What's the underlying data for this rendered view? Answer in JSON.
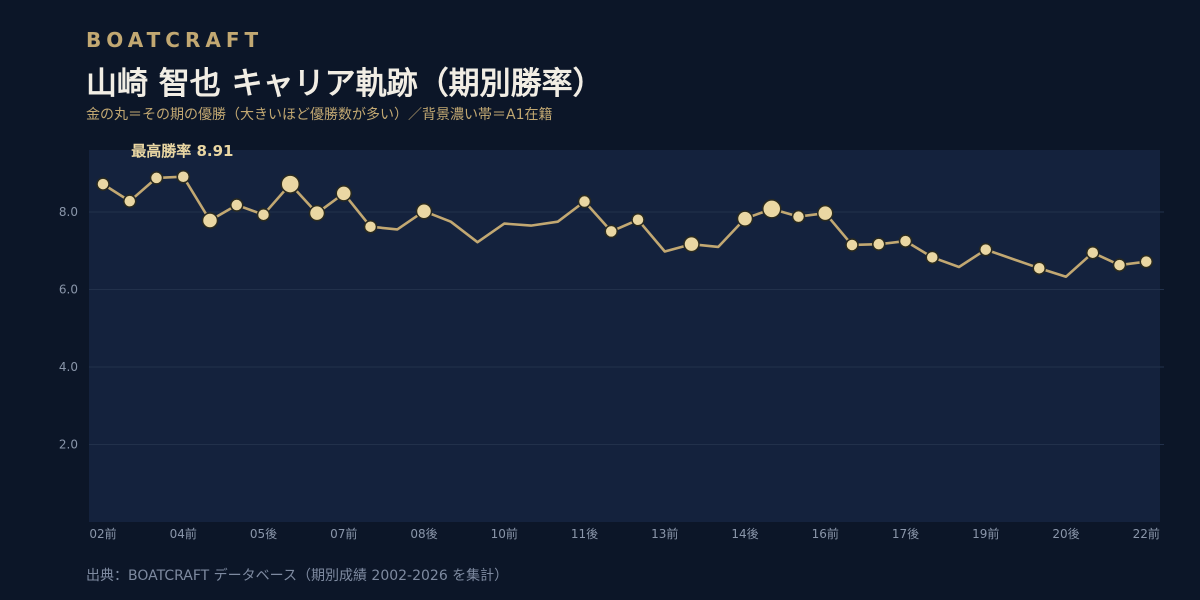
{
  "header": {
    "brand": "BOATCRAFT",
    "title": "山崎 智也 キャリア軌跡（期別勝率）",
    "subtitle": "金の丸＝その期の優勝（大きいほど優勝数が多い）／背景濃い帯＝A1在籍"
  },
  "footer": {
    "source": "出典：BOATCRAFT データベース（期別成績 2002-2026 を集計）"
  },
  "colors": {
    "background": "#0c1628",
    "a1_band": "#14223d",
    "line": "#c2a872",
    "marker": "#ead7a3",
    "marker_stroke": "#2a2a1e",
    "grid": "#22314b"
  },
  "chart_data": {
    "type": "line",
    "x_labels": [
      "02前",
      "04前",
      "05後",
      "07前",
      "08後",
      "10前",
      "11後",
      "13前",
      "14後",
      "16前",
      "17後",
      "19前",
      "20後",
      "22前"
    ],
    "y_ticks": [
      "2.0",
      "4.0",
      "6.0",
      "8.0"
    ],
    "ylim": [
      0,
      9.5
    ],
    "grid": true,
    "annotation": "最高勝率 8.91",
    "series": [
      {
        "points": [
          {
            "t": 0,
            "y": 8.72,
            "wins": 1
          },
          {
            "t": 1,
            "y": 8.28,
            "wins": 1
          },
          {
            "t": 2,
            "y": 8.88,
            "wins": 1
          },
          {
            "t": 3,
            "y": 8.91,
            "wins": 1
          },
          {
            "t": 4,
            "y": 7.78,
            "wins": 2
          },
          {
            "t": 5,
            "y": 8.18,
            "wins": 1
          },
          {
            "t": 6,
            "y": 7.93,
            "wins": 1
          },
          {
            "t": 7,
            "y": 8.72,
            "wins": 3
          },
          {
            "t": 8,
            "y": 7.97,
            "wins": 2
          },
          {
            "t": 9,
            "y": 8.48,
            "wins": 2
          },
          {
            "t": 10,
            "y": 7.62,
            "wins": 1
          },
          {
            "t": 11,
            "y": 7.55,
            "wins": 0
          },
          {
            "t": 12,
            "y": 8.02,
            "wins": 2
          },
          {
            "t": 13,
            "y": 7.75,
            "wins": 0
          },
          {
            "t": 14,
            "y": 7.22,
            "wins": 0
          },
          {
            "t": 15,
            "y": 7.7,
            "wins": 0
          },
          {
            "t": 16,
            "y": 7.65,
            "wins": 0
          },
          {
            "t": 17,
            "y": 7.75,
            "wins": 0
          },
          {
            "t": 18,
            "y": 8.27,
            "wins": 1
          },
          {
            "t": 19,
            "y": 7.5,
            "wins": 1
          },
          {
            "t": 20,
            "y": 7.8,
            "wins": 1
          },
          {
            "t": 21,
            "y": 6.98,
            "wins": 0
          },
          {
            "t": 22,
            "y": 7.17,
            "wins": 2
          },
          {
            "t": 23,
            "y": 7.1,
            "wins": 0
          },
          {
            "t": 24,
            "y": 7.83,
            "wins": 2
          },
          {
            "t": 25,
            "y": 8.08,
            "wins": 3
          },
          {
            "t": 26,
            "y": 7.88,
            "wins": 1
          },
          {
            "t": 27,
            "y": 7.97,
            "wins": 2
          },
          {
            "t": 28,
            "y": 7.15,
            "wins": 1
          },
          {
            "t": 29,
            "y": 7.17,
            "wins": 1
          },
          {
            "t": 30,
            "y": 7.25,
            "wins": 1
          },
          {
            "t": 31,
            "y": 6.83,
            "wins": 1
          },
          {
            "t": 32,
            "y": 6.58,
            "wins": 0
          },
          {
            "t": 33,
            "y": 7.03,
            "wins": 1
          },
          {
            "t": 35,
            "y": 6.55,
            "wins": 1
          },
          {
            "t": 36,
            "y": 6.33,
            "wins": 0
          },
          {
            "t": 37,
            "y": 6.95,
            "wins": 1
          },
          {
            "t": 38,
            "y": 6.63,
            "wins": 1
          },
          {
            "t": 39,
            "y": 6.72,
            "wins": 1
          }
        ]
      }
    ]
  }
}
